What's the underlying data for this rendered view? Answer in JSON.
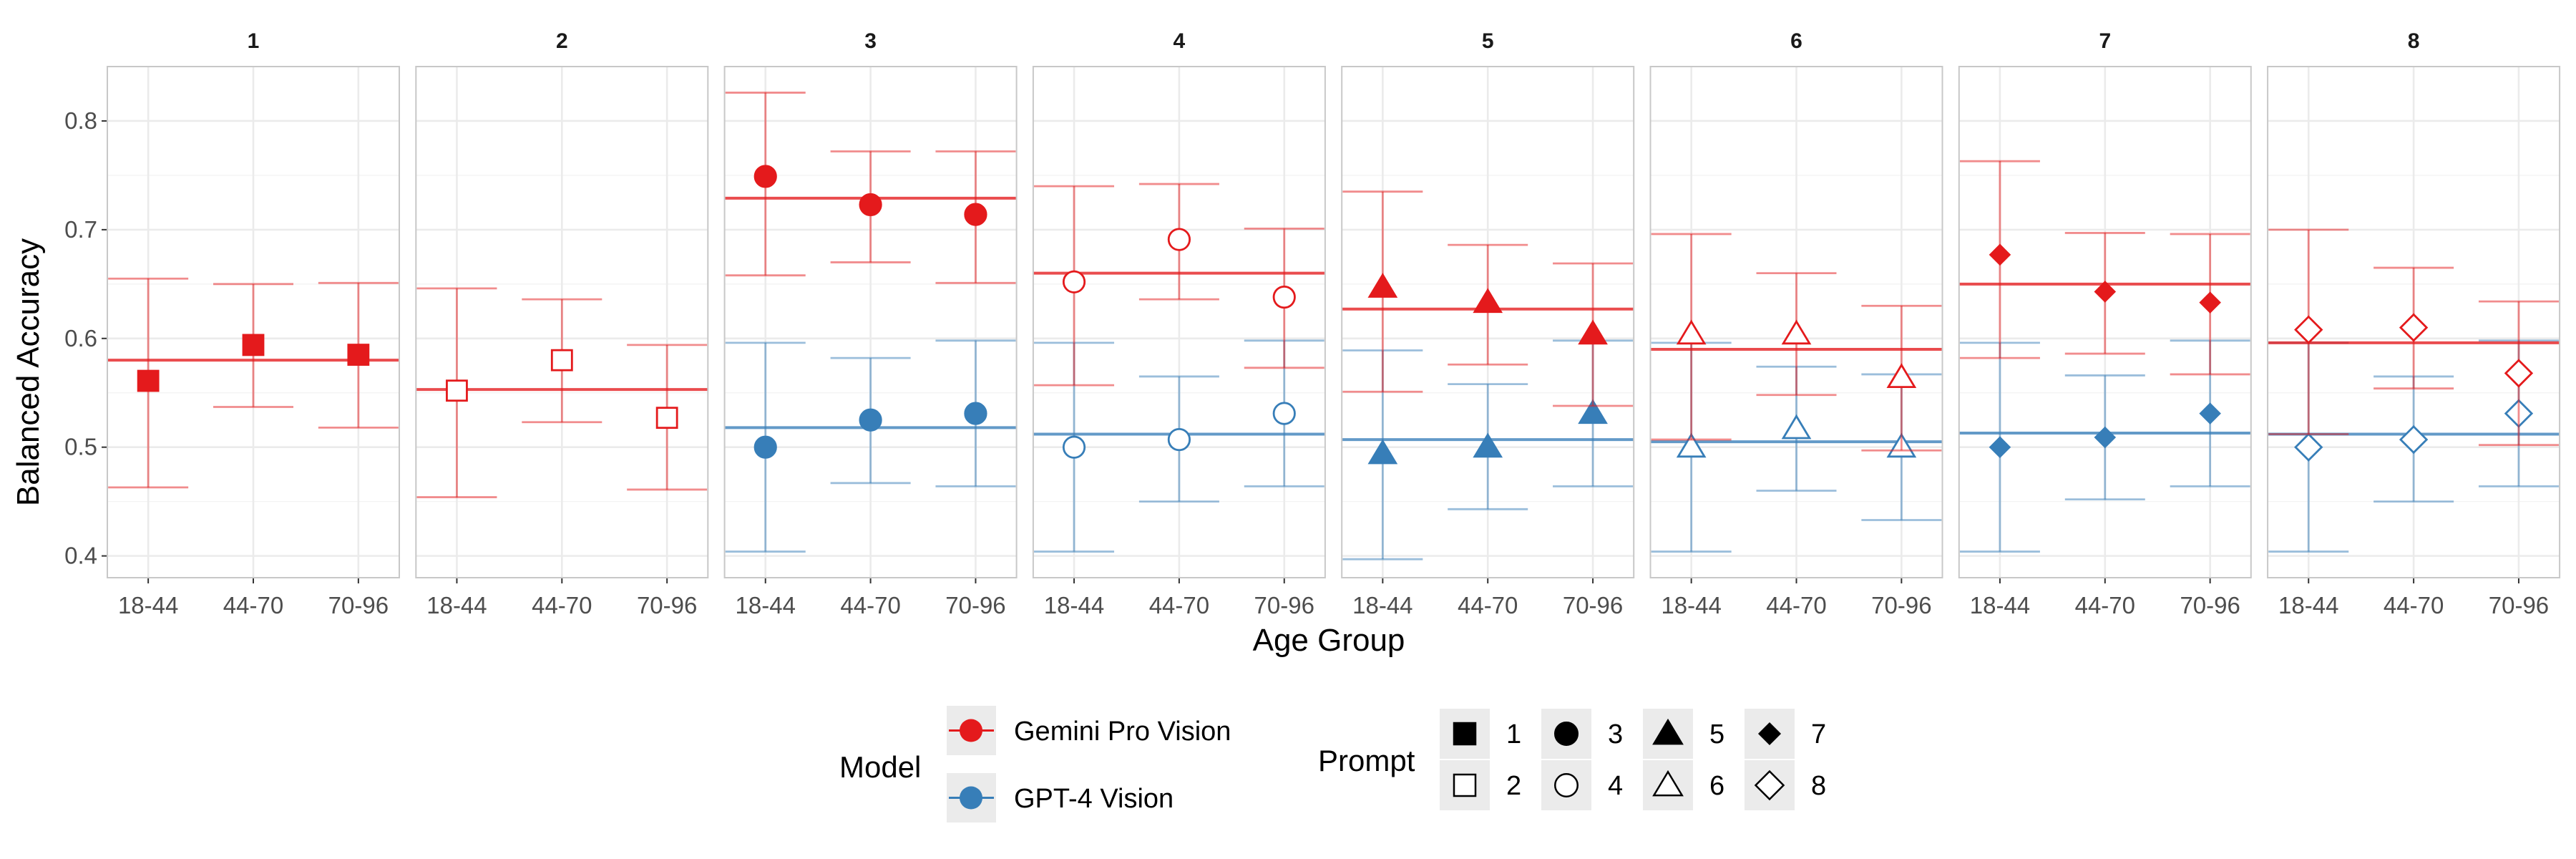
{
  "chart_data": {
    "type": "scatter",
    "facet_labels": [
      "1",
      "2",
      "3",
      "4",
      "5",
      "6",
      "7",
      "8"
    ],
    "categories": [
      "18-44",
      "44-70",
      "70-96"
    ],
    "xlabel": "Age Group",
    "ylabel": "Balanced Accuracy",
    "ylim": [
      0.38,
      0.85
    ],
    "yticks": [
      0.4,
      0.5,
      0.6,
      0.7,
      0.8
    ],
    "ytick_labels": [
      "0.4",
      "0.5",
      "0.6",
      "0.7",
      "0.8"
    ],
    "grid": true,
    "legend_placement": "bottom",
    "legend": {
      "model_title": "Model",
      "prompt_title": "Prompt",
      "models": [
        {
          "label": "Gemini Pro Vision",
          "color": "#e41a1c"
        },
        {
          "label": "GPT-4 Vision",
          "color": "#377eb8"
        }
      ],
      "prompts": [
        {
          "label": "1",
          "shape": "square",
          "filled": true
        },
        {
          "label": "2",
          "shape": "square",
          "filled": false
        },
        {
          "label": "3",
          "shape": "circle",
          "filled": true
        },
        {
          "label": "4",
          "shape": "circle",
          "filled": false
        },
        {
          "label": "5",
          "shape": "triangle",
          "filled": true
        },
        {
          "label": "6",
          "shape": "triangle",
          "filled": false
        },
        {
          "label": "7",
          "shape": "diamond",
          "filled": true
        },
        {
          "label": "8",
          "shape": "diamond",
          "filled": false
        }
      ]
    },
    "panels": [
      {
        "prompt": "1",
        "shape": "square",
        "filled": true,
        "series": [
          {
            "model": "Gemini Pro Vision",
            "mean": 0.58,
            "values": [
              0.561,
              0.594,
              0.585
            ],
            "lower": [
              0.463,
              0.537,
              0.518
            ],
            "upper": [
              0.655,
              0.65,
              0.651
            ]
          }
        ]
      },
      {
        "prompt": "2",
        "shape": "square",
        "filled": false,
        "series": [
          {
            "model": "Gemini Pro Vision",
            "mean": 0.553,
            "values": [
              0.552,
              0.58,
              0.527
            ],
            "lower": [
              0.454,
              0.523,
              0.461
            ],
            "upper": [
              0.646,
              0.636,
              0.594
            ]
          }
        ]
      },
      {
        "prompt": "3",
        "shape": "circle",
        "filled": true,
        "series": [
          {
            "model": "Gemini Pro Vision",
            "mean": 0.729,
            "values": [
              0.749,
              0.723,
              0.714
            ],
            "lower": [
              0.658,
              0.67,
              0.651
            ],
            "upper": [
              0.826,
              0.772,
              0.772
            ]
          },
          {
            "model": "GPT-4 Vision",
            "mean": 0.518,
            "values": [
              0.5,
              0.525,
              0.531
            ],
            "lower": [
              0.404,
              0.467,
              0.464
            ],
            "upper": [
              0.596,
              0.582,
              0.598
            ]
          }
        ]
      },
      {
        "prompt": "4",
        "shape": "circle",
        "filled": false,
        "series": [
          {
            "model": "Gemini Pro Vision",
            "mean": 0.66,
            "values": [
              0.652,
              0.691,
              0.638
            ],
            "lower": [
              0.557,
              0.636,
              0.573
            ],
            "upper": [
              0.74,
              0.742,
              0.701
            ]
          },
          {
            "model": "GPT-4 Vision",
            "mean": 0.512,
            "values": [
              0.5,
              0.507,
              0.531
            ],
            "lower": [
              0.404,
              0.45,
              0.464
            ],
            "upper": [
              0.596,
              0.565,
              0.598
            ]
          }
        ]
      },
      {
        "prompt": "5",
        "shape": "triangle",
        "filled": true,
        "series": [
          {
            "model": "Gemini Pro Vision",
            "mean": 0.627,
            "values": [
              0.647,
              0.633,
              0.604
            ],
            "lower": [
              0.551,
              0.576,
              0.538
            ],
            "upper": [
              0.735,
              0.686,
              0.669
            ]
          },
          {
            "model": "GPT-4 Vision",
            "mean": 0.507,
            "values": [
              0.494,
              0.5,
              0.531
            ],
            "lower": [
              0.397,
              0.443,
              0.464
            ],
            "upper": [
              0.589,
              0.558,
              0.598
            ]
          }
        ]
      },
      {
        "prompt": "6",
        "shape": "triangle",
        "filled": false,
        "series": [
          {
            "model": "Gemini Pro Vision",
            "mean": 0.59,
            "values": [
              0.604,
              0.604,
              0.564
            ],
            "lower": [
              0.507,
              0.548,
              0.497
            ],
            "upper": [
              0.696,
              0.66,
              0.63
            ]
          },
          {
            "model": "GPT-4 Vision",
            "mean": 0.505,
            "values": [
              0.5,
              0.517,
              0.5
            ],
            "lower": [
              0.404,
              0.46,
              0.433
            ],
            "upper": [
              0.596,
              0.574,
              0.567
            ]
          }
        ]
      },
      {
        "prompt": "7",
        "shape": "diamond",
        "filled": true,
        "series": [
          {
            "model": "Gemini Pro Vision",
            "mean": 0.65,
            "values": [
              0.677,
              0.643,
              0.633
            ],
            "lower": [
              0.582,
              0.586,
              0.567
            ],
            "upper": [
              0.763,
              0.697,
              0.696
            ]
          },
          {
            "model": "GPT-4 Vision",
            "mean": 0.513,
            "values": [
              0.5,
              0.509,
              0.531
            ],
            "lower": [
              0.404,
              0.452,
              0.464
            ],
            "upper": [
              0.596,
              0.566,
              0.598
            ]
          }
        ]
      },
      {
        "prompt": "8",
        "shape": "diamond",
        "filled": false,
        "series": [
          {
            "model": "Gemini Pro Vision",
            "mean": 0.596,
            "values": [
              0.608,
              0.61,
              0.568
            ],
            "lower": [
              0.512,
              0.554,
              0.502
            ],
            "upper": [
              0.7,
              0.665,
              0.634
            ]
          },
          {
            "model": "GPT-4 Vision",
            "mean": 0.512,
            "values": [
              0.5,
              0.507,
              0.531
            ],
            "lower": [
              0.404,
              0.45,
              0.464
            ],
            "upper": [
              0.596,
              0.565,
              0.598
            ]
          }
        ]
      }
    ]
  }
}
